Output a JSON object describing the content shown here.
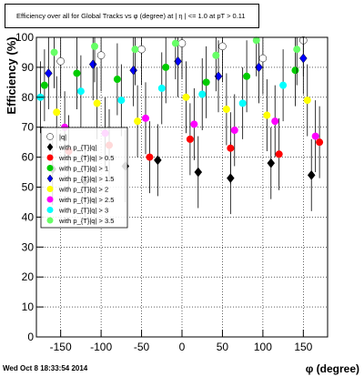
{
  "title": "Efficiency over all for Global Tracks vs φ (degree) at | η | <= 1.0 at pT > 0.11",
  "timestamp": "Wed Oct  8 18:33:54 2014",
  "chart_data": {
    "type": "scatter",
    "title": "Efficiency over all for Global Tracks vs φ (degree) at | η | <= 1.0 at pT > 0.11",
    "xlabel": "φ (degree)",
    "ylabel": "Efficiency (%)",
    "xlim": [
      -180,
      180
    ],
    "ylim": [
      0,
      100
    ],
    "x_ticks": [
      -150,
      -100,
      -50,
      0,
      50,
      100,
      150
    ],
    "y_ticks": [
      0,
      10,
      20,
      30,
      40,
      50,
      60,
      70,
      80,
      90,
      100
    ],
    "grid": true,
    "legend_position": "middle-left",
    "series": [
      {
        "label": "|q|",
        "color": "#ffffff",
        "marker": "circle",
        "x": [
          -150,
          -100,
          -50,
          0,
          50,
          100,
          150
        ],
        "y": [
          92,
          94,
          96,
          98,
          97,
          93,
          99
        ]
      },
      {
        "label": "with p_{T}|q|",
        "color": "#000000",
        "marker": "diamond",
        "x": [
          -160,
          -120,
          -70,
          -30,
          20,
          60,
          110,
          160
        ],
        "y": [
          56,
          52,
          57,
          59,
          55,
          53,
          58,
          54
        ]
      },
      {
        "label": "with p_{T}|q| > 0.5",
        "color": "#ff0000",
        "marker": "circle",
        "x": [
          -140,
          -90,
          -40,
          10,
          60,
          120,
          170
        ],
        "y": [
          62,
          64,
          60,
          66,
          63,
          61,
          65
        ]
      },
      {
        "label": "with p_{T}|q| > 1",
        "color": "#00cc00",
        "marker": "circle",
        "x": [
          -170,
          -130,
          -80,
          -20,
          30,
          80,
          140
        ],
        "y": [
          84,
          88,
          86,
          90,
          85,
          87,
          89
        ]
      },
      {
        "label": "with p_{T}|q| > 1.5",
        "color": "#0000ff",
        "marker": "diamond",
        "x": [
          -165,
          -110,
          -60,
          -5,
          45,
          95,
          150
        ],
        "y": [
          88,
          91,
          89,
          92,
          87,
          90,
          93
        ]
      },
      {
        "label": "with p_{T}|q| > 2",
        "color": "#ffff00",
        "marker": "circle",
        "x": [
          -155,
          -105,
          -55,
          5,
          55,
          105,
          155
        ],
        "y": [
          75,
          78,
          72,
          80,
          76,
          74,
          79
        ]
      },
      {
        "label": "with p_{T}|q| > 2.5",
        "color": "#ff00ff",
        "marker": "circle",
        "x": [
          -145,
          -95,
          -45,
          15,
          65,
          115,
          165
        ],
        "y": [
          70,
          68,
          73,
          71,
          69,
          72,
          67
        ]
      },
      {
        "label": "with p_{T}|q| > 3",
        "color": "#00ffff",
        "marker": "circle",
        "x": [
          -175,
          -125,
          -75,
          -25,
          25,
          75,
          125
        ],
        "y": [
          80,
          82,
          79,
          83,
          81,
          78,
          84
        ]
      },
      {
        "label": "with p_{T}|q| > 3.5",
        "color": "#66ff66",
        "marker": "circle",
        "x": [
          -158,
          -108,
          -58,
          -8,
          42,
          92,
          142
        ],
        "y": [
          95,
          97,
          96,
          98,
          94,
          99,
          96
        ]
      }
    ]
  }
}
